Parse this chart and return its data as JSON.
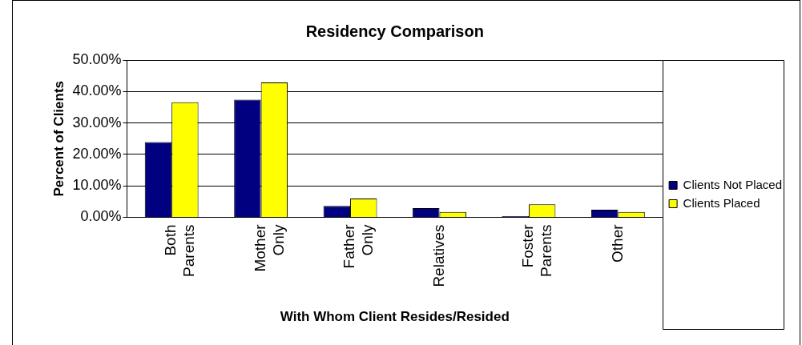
{
  "chart_data": {
    "type": "bar",
    "title": "Residency Comparison",
    "xlabel": "With Whom Client Resides/Resided",
    "ylabel": "Percent of Clients",
    "categories": [
      "Both Parents",
      "Mother Only",
      "Father Only",
      "Relatives",
      "Foster Parents",
      "Other"
    ],
    "series": [
      {
        "name": "Clients Not Placed",
        "color": "#000080",
        "values": [
          23.9,
          37.4,
          3.6,
          2.9,
          0.4,
          2.4
        ]
      },
      {
        "name": "Clients Placed",
        "color": "#ffff00",
        "values": [
          36.6,
          42.9,
          6.0,
          1.7,
          4.1,
          1.7
        ]
      }
    ],
    "ylim": [
      0,
      50
    ],
    "yticks": [
      {
        "value": 0,
        "label": "0.00%"
      },
      {
        "value": 10,
        "label": "10.00%"
      },
      {
        "value": 20,
        "label": "20.00%"
      },
      {
        "value": 30,
        "label": "30.00%"
      },
      {
        "value": 40,
        "label": "40.00%"
      },
      {
        "value": 50,
        "label": "50.00%"
      }
    ],
    "grid": "y",
    "legend": "right"
  }
}
